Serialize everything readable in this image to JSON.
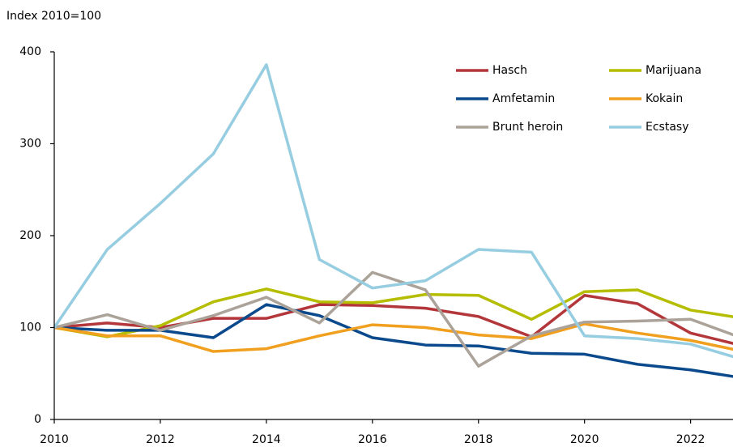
{
  "chart_data": {
    "type": "line",
    "axis_label": "Index 2010=100",
    "x": [
      2010,
      2011,
      2012,
      2013,
      2014,
      2015,
      2016,
      2017,
      2018,
      2019,
      2020,
      2021,
      2022,
      2023
    ],
    "xlim": [
      2010,
      2022.8
    ],
    "xticks": [
      2010,
      2012,
      2014,
      2016,
      2018,
      2020,
      2022
    ],
    "ylim": [
      0,
      400
    ],
    "yticks": [
      0,
      100,
      200,
      300,
      400
    ],
    "grid": false,
    "legend": "top-right",
    "series": [
      {
        "name": "Hasch",
        "color": "#b3373a",
        "values": [
          100,
          105,
          100,
          110,
          110,
          125,
          124,
          121,
          112,
          90,
          135,
          126,
          94,
          80
        ]
      },
      {
        "name": "Marijuana",
        "color": "#b5bd00",
        "values": [
          100,
          90,
          102,
          128,
          142,
          128,
          127,
          136,
          135,
          109,
          139,
          141,
          119,
          110
        ]
      },
      {
        "name": "Amfetamin",
        "color": "#0a4a8c",
        "values": [
          100,
          97,
          97,
          89,
          125,
          113,
          89,
          81,
          80,
          72,
          71,
          60,
          54,
          45
        ]
      },
      {
        "name": "Kokain",
        "color": "#f0a01e",
        "values": [
          100,
          91,
          91,
          74,
          77,
          91,
          103,
          100,
          92,
          88,
          104,
          94,
          86,
          74
        ]
      },
      {
        "name": "Brunt heroin",
        "color": "#aba39a",
        "values": [
          100,
          114,
          97,
          113,
          133,
          105,
          160,
          141,
          58,
          91,
          106,
          107,
          109,
          88
        ]
      },
      {
        "name": "Ecstasy",
        "color": "#96cde0",
        "values": [
          100,
          185,
          235,
          289,
          386,
          174,
          143,
          151,
          185,
          182,
          91,
          88,
          82,
          65
        ]
      }
    ]
  }
}
